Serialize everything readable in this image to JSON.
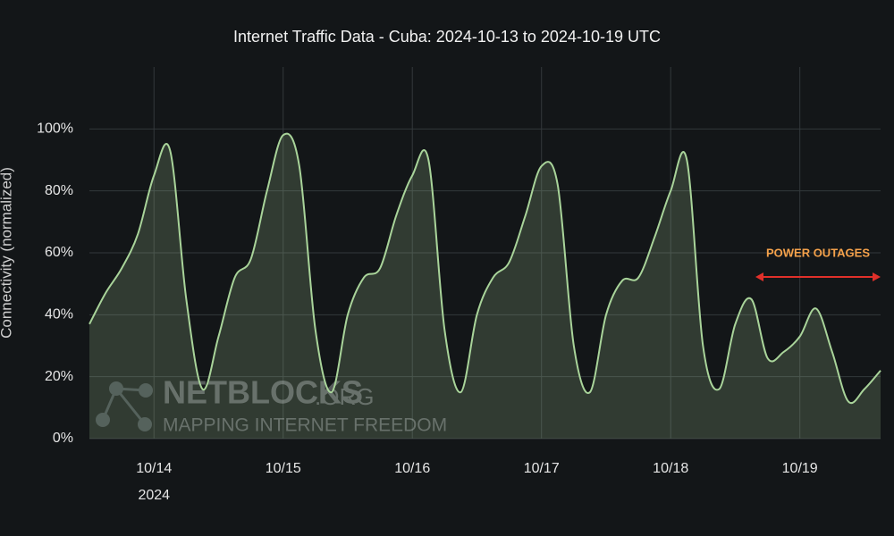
{
  "chart_data": {
    "type": "area",
    "title": "Internet Traffic Data - Cuba: 2024-10-13 to 2024-10-19 UTC",
    "y_label": "Connectivity (normalized)",
    "x_year": "2024",
    "annotation": "POWER OUTAGES",
    "watermark": {
      "brand": "NETBLOCKS",
      "suffix": ".ORG",
      "tagline": "MAPPING INTERNET FREEDOM"
    },
    "categories": [
      null,
      null,
      null,
      null,
      "10/14",
      null,
      null,
      null,
      null,
      null,
      null,
      null,
      "10/15",
      null,
      null,
      null,
      null,
      null,
      null,
      null,
      "10/16",
      null,
      null,
      null,
      null,
      null,
      null,
      null,
      "10/17",
      null,
      null,
      null,
      null,
      null,
      null,
      null,
      "10/18",
      null,
      null,
      null,
      null,
      null,
      null,
      null,
      "10/19",
      null,
      null,
      null,
      null,
      null
    ],
    "values": [
      37,
      47,
      55,
      66,
      85,
      93,
      45,
      16,
      33,
      52,
      58,
      80,
      98,
      88,
      35,
      15,
      40,
      52,
      55,
      72,
      85,
      90,
      35,
      15,
      40,
      52,
      57,
      72,
      88,
      82,
      30,
      15,
      40,
      51,
      52,
      65,
      80,
      90,
      30,
      16,
      37,
      45,
      26,
      28,
      33,
      42,
      28,
      12,
      16,
      22
    ],
    "color": "#a9d49a",
    "ylim": [
      0,
      120
    ],
    "yticks": [
      {
        "value": 0,
        "label": "0%"
      },
      {
        "value": 20,
        "label": "20%"
      },
      {
        "value": 40,
        "label": "40%"
      },
      {
        "value": 60,
        "label": "60%"
      },
      {
        "value": 80,
        "label": "80%"
      },
      {
        "value": 100,
        "label": "100%"
      }
    ],
    "grid": true
  }
}
